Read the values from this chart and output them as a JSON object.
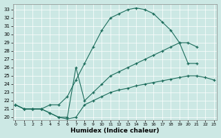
{
  "xlabel": "Humidex (Indice chaleur)",
  "bg_color": "#cce8e4",
  "line_color": "#1a6b5a",
  "xlim": [
    -0.3,
    23.3
  ],
  "ylim": [
    19.7,
    33.7
  ],
  "xticks": [
    0,
    1,
    2,
    3,
    4,
    5,
    6,
    7,
    8,
    9,
    10,
    11,
    12,
    13,
    14,
    15,
    16,
    17,
    18,
    19,
    20,
    21,
    22,
    23
  ],
  "yticks": [
    20,
    21,
    22,
    23,
    24,
    25,
    26,
    27,
    28,
    29,
    30,
    31,
    32,
    33
  ],
  "line1_x": [
    0,
    1,
    2,
    3,
    4,
    5,
    6,
    7,
    8,
    9,
    10,
    11,
    12,
    13,
    14,
    15,
    16,
    17,
    18,
    19,
    20,
    21
  ],
  "line1_y": [
    21.5,
    21.0,
    21.0,
    21.0,
    21.5,
    21.5,
    22.5,
    24.5,
    26.5,
    28.5,
    30.5,
    32.0,
    32.5,
    33.0,
    33.2,
    33.0,
    32.5,
    31.5,
    30.5,
    29.0,
    26.5,
    26.5
  ],
  "line2_x": [
    0,
    1,
    2,
    3,
    4,
    5,
    6,
    7,
    8,
    9,
    10,
    11,
    12,
    13,
    14,
    15,
    16,
    17,
    18,
    19,
    20,
    21
  ],
  "line2_y": [
    21.5,
    21.0,
    21.0,
    21.0,
    20.5,
    20.0,
    20.0,
    26.0,
    22.0,
    23.0,
    24.0,
    25.0,
    25.5,
    26.0,
    26.5,
    27.0,
    27.5,
    28.0,
    28.5,
    29.0,
    29.0,
    28.5
  ],
  "line3_x": [
    0,
    1,
    2,
    3,
    4,
    5,
    6,
    7,
    8,
    9,
    10,
    11,
    12,
    13,
    14,
    15,
    16,
    17,
    18,
    19,
    20,
    21,
    22,
    23
  ],
  "line3_y": [
    21.5,
    21.0,
    21.0,
    21.0,
    20.5,
    20.0,
    19.8,
    20.0,
    21.5,
    22.0,
    22.5,
    23.0,
    23.3,
    23.5,
    23.8,
    24.0,
    24.2,
    24.4,
    24.6,
    24.8,
    25.0,
    25.0,
    24.8,
    24.5
  ]
}
